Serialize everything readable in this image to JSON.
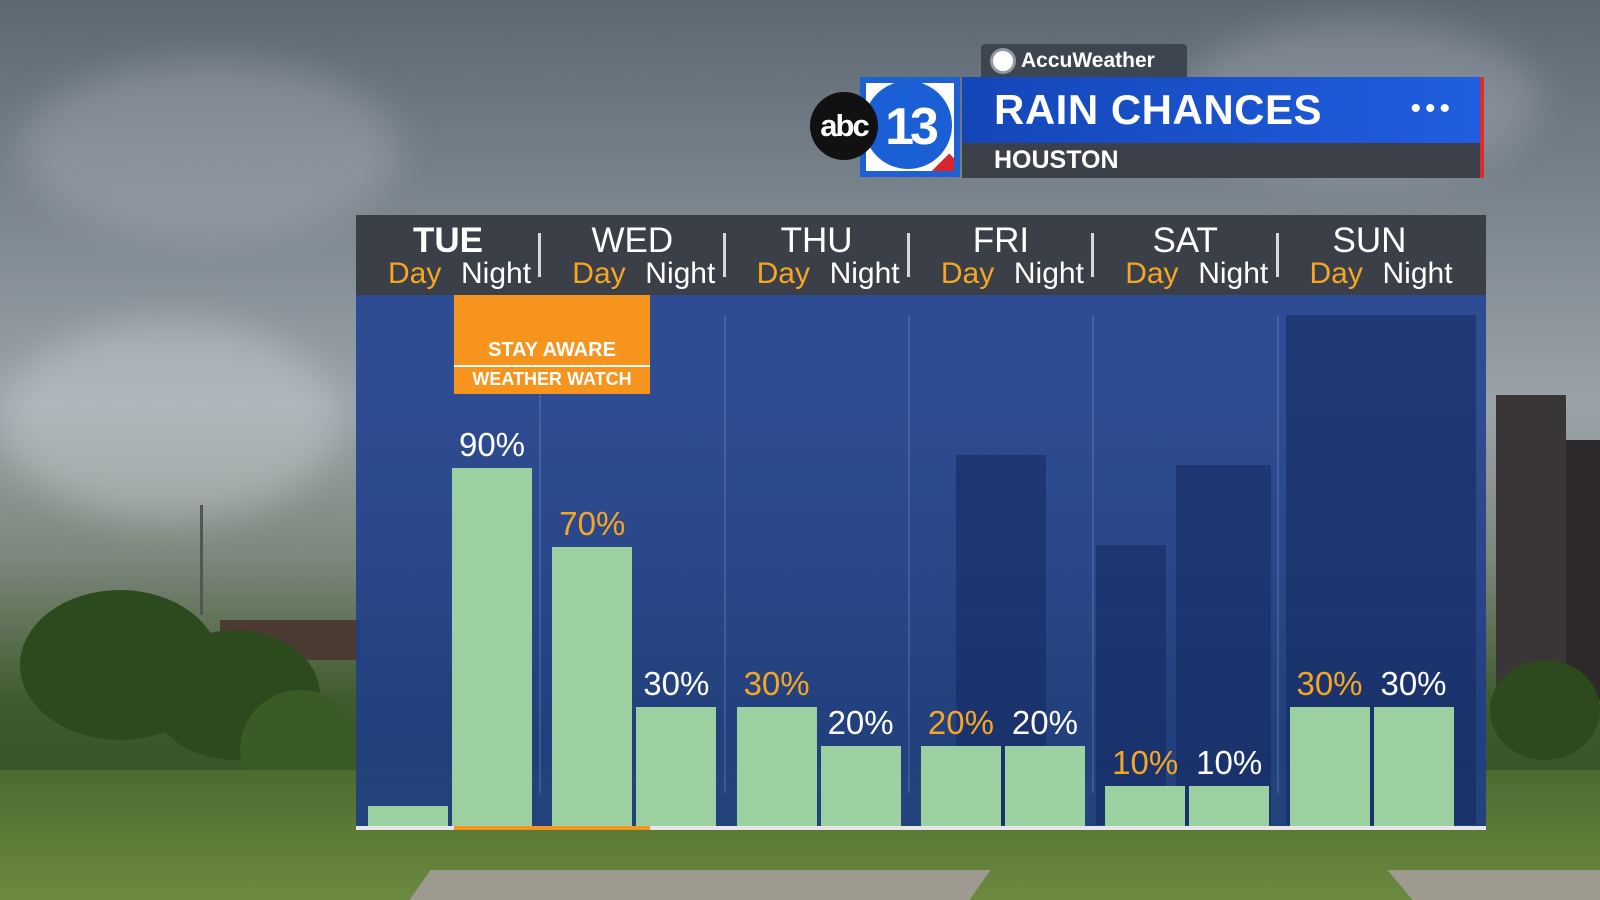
{
  "brand": {
    "weather_provider": "AccuWeather",
    "network_logo": "abc",
    "channel_number": "13"
  },
  "header": {
    "title": "RAIN CHANCES",
    "location": "HOUSTON",
    "menu_glyph": "•••"
  },
  "alert": {
    "line1": "STAY AWARE",
    "line2": "WEATHER WATCH",
    "color": "#f7941d"
  },
  "colors": {
    "bar": "#9bd1a0",
    "day_text": "#f5a623",
    "night_text": "#ffffff",
    "title_bar": "#1f5ee0"
  },
  "icons": [
    "sun-icon",
    "ellipsis-icon"
  ],
  "chart_data": {
    "type": "bar",
    "title": "RAIN CHANCES",
    "units": "%",
    "ylim": [
      0,
      100
    ],
    "days": [
      "TUE",
      "WED",
      "THU",
      "FRI",
      "SAT",
      "SUN"
    ],
    "periods": [
      "Day",
      "Night"
    ],
    "values": [
      {
        "day": "TUE",
        "period": "Day",
        "value": 5,
        "label": ""
      },
      {
        "day": "TUE",
        "period": "Night",
        "value": 90,
        "label": "90%"
      },
      {
        "day": "WED",
        "period": "Day",
        "value": 70,
        "label": "70%"
      },
      {
        "day": "WED",
        "period": "Night",
        "value": 30,
        "label": "30%"
      },
      {
        "day": "THU",
        "period": "Day",
        "value": 30,
        "label": "30%"
      },
      {
        "day": "THU",
        "period": "Night",
        "value": 20,
        "label": "20%"
      },
      {
        "day": "FRI",
        "period": "Day",
        "value": 20,
        "label": "20%"
      },
      {
        "day": "FRI",
        "period": "Night",
        "value": 20,
        "label": "20%"
      },
      {
        "day": "SAT",
        "period": "Day",
        "value": 10,
        "label": "10%"
      },
      {
        "day": "SAT",
        "period": "Night",
        "value": 10,
        "label": "10%"
      },
      {
        "day": "SUN",
        "period": "Day",
        "value": 30,
        "label": "30%"
      },
      {
        "day": "SUN",
        "period": "Night",
        "value": 30,
        "label": "30%"
      }
    ]
  }
}
